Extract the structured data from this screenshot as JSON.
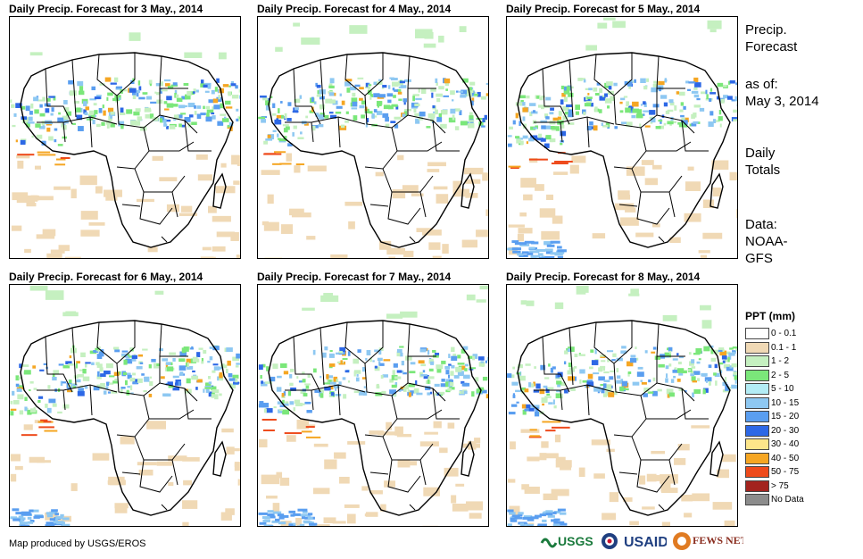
{
  "panels": [
    {
      "title": "Daily Precip. Forecast for 3 May., 2014"
    },
    {
      "title": "Daily Precip. Forecast for 4 May., 2014"
    },
    {
      "title": "Daily Precip. Forecast for 5 May., 2014"
    },
    {
      "title": "Daily Precip. Forecast for 6 May., 2014"
    },
    {
      "title": "Daily Precip. Forecast for 7 May., 2014"
    },
    {
      "title": "Daily Precip. Forecast for 8 May., 2014"
    }
  ],
  "sidebar": {
    "heading_line1": "Precip.",
    "heading_line2": "Forecast",
    "asof_line1": "as of:",
    "asof_line2": "May 3, 2014",
    "totals_line1": "Daily",
    "totals_line2": "Totals",
    "data_line1": "Data:",
    "data_line2": "NOAA-",
    "data_line3": "GFS"
  },
  "legend": {
    "title": "PPT (mm)",
    "items": [
      {
        "label": "0 - 0.1",
        "color": "#ffffff"
      },
      {
        "label": "0.1 - 1",
        "color": "#f0d9b5"
      },
      {
        "label": "1 - 2",
        "color": "#c5f0c0"
      },
      {
        "label": "2 - 5",
        "color": "#7be77a"
      },
      {
        "label": "5 - 10",
        "color": "#b3ecf5"
      },
      {
        "label": "10 - 15",
        "color": "#8ec8f2"
      },
      {
        "label": "15 - 20",
        "color": "#5a9ef0"
      },
      {
        "label": "20 - 30",
        "color": "#2d68e6"
      },
      {
        "label": "30 - 40",
        "color": "#fde68a"
      },
      {
        "label": "40 - 50",
        "color": "#f5a623"
      },
      {
        "label": "50 - 75",
        "color": "#ee4a1b"
      },
      {
        "label": "> 75",
        "color": "#a3231e"
      },
      {
        "label": "No Data",
        "color": "#8c8c8c"
      }
    ]
  },
  "credit": "Map produced by USGS/EROS",
  "logos": {
    "usgs": "USGS",
    "usaid": "USAID",
    "fewsnet": "FEWS NET"
  }
}
